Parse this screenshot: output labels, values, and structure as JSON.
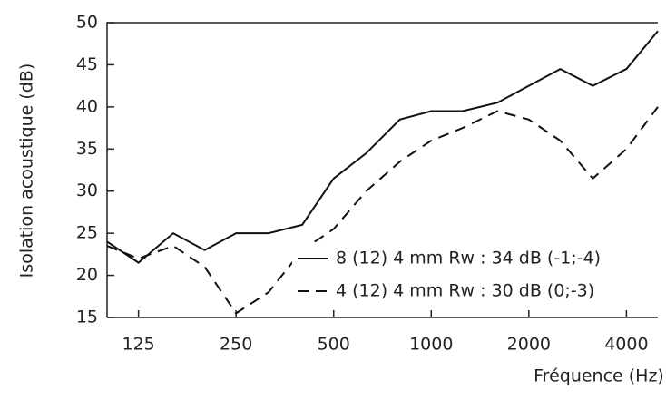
{
  "chart_data": {
    "type": "line",
    "xlabel": "Fréquence (Hz)",
    "ylabel": "Isolation acoustique (dB)",
    "x": [
      100,
      125,
      160,
      200,
      250,
      315,
      400,
      500,
      630,
      800,
      1000,
      1250,
      1600,
      2000,
      2500,
      3150,
      4000,
      5000
    ],
    "series": [
      {
        "name": "8 (12) 4 mm Rw : 34 dB (-1;-4)",
        "color": "#111111",
        "style": "solid",
        "values": [
          24,
          21.5,
          25,
          23,
          25,
          25,
          26,
          31.5,
          34.5,
          38.5,
          39.5,
          39.5,
          40.5,
          42.5,
          44.5,
          42.5,
          44.5,
          49
        ]
      },
      {
        "name": "4 (12) 4 mm Rw : 30 dB (0;-3)",
        "color": "#111111",
        "style": "dashed",
        "values": [
          23.5,
          22,
          23.5,
          21,
          15.5,
          18,
          23,
          25.5,
          30,
          33.5,
          36,
          37.5,
          39.5,
          38.5,
          36,
          31.5,
          35,
          40
        ]
      }
    ],
    "xscale": "log",
    "xlim": [
      100,
      5000
    ],
    "xticks": [
      125,
      250,
      500,
      1000,
      2000,
      4000
    ],
    "ylim": [
      15,
      50
    ],
    "yticks": [
      15,
      20,
      25,
      30,
      35,
      40,
      45,
      50
    ],
    "grid": false,
    "legend": "lower right"
  }
}
